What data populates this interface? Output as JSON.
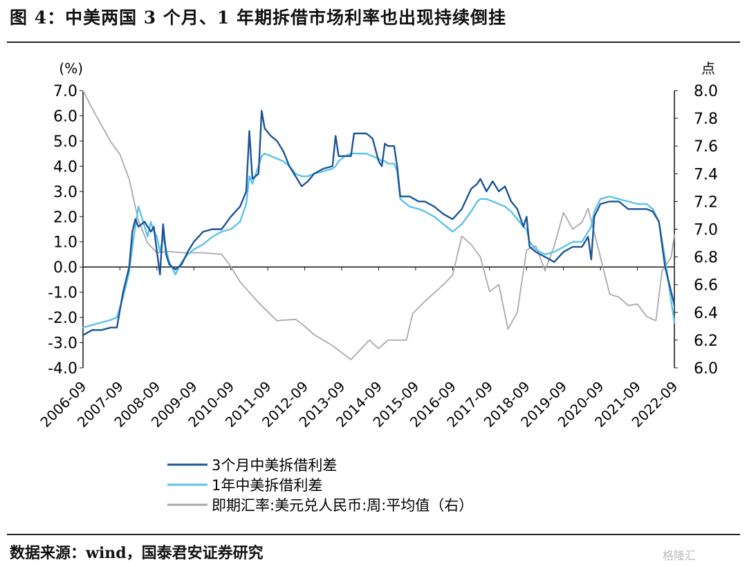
{
  "figure": {
    "title": "图 4：中美两国 3 个月、1 年期拆借市场利率也出现持续倒挂",
    "source": "数据来源：wind，国泰君安证券研究",
    "watermark": "格隆汇"
  },
  "colors": {
    "series_3m": "#1a5396",
    "series_1y": "#5bc2ea",
    "series_fx": "#a9a9a9",
    "axis": "#111111"
  },
  "chart_data": {
    "type": "line",
    "left_axis": {
      "unit_label": "(%)",
      "ylim": [
        -4.0,
        7.0
      ],
      "ticks": [
        "-4.0",
        "-3.0",
        "-2.0",
        "-1.0",
        "0.0",
        "1.0",
        "2.0",
        "3.0",
        "4.0",
        "5.0",
        "6.0",
        "7.0"
      ]
    },
    "right_axis": {
      "unit_label": "点",
      "ylim": [
        6.0,
        8.0
      ],
      "ticks": [
        "6.0",
        "6.2",
        "6.4",
        "6.6",
        "6.8",
        "7.0",
        "7.2",
        "7.4",
        "7.6",
        "7.8",
        "8.0"
      ]
    },
    "x_axis": {
      "range": [
        "2006-09",
        "2022-09"
      ],
      "ticks": [
        "2006-09",
        "2007-09",
        "2008-09",
        "2009-09",
        "2010-09",
        "2011-09",
        "2012-09",
        "2013-09",
        "2014-09",
        "2015-09",
        "2016-09",
        "2017-09",
        "2018-09",
        "2019-09",
        "2020-09",
        "2021-09",
        "2022-09"
      ]
    },
    "grid": false,
    "legend_position": "bottom",
    "series": [
      {
        "name": "3个月中美拆借利差",
        "axis": "left",
        "points": [
          [
            "2006-09",
            -2.7
          ],
          [
            "2006-12",
            -2.5
          ],
          [
            "2007-03",
            -2.5
          ],
          [
            "2007-06",
            -2.4
          ],
          [
            "2007-08",
            -2.4
          ],
          [
            "2007-10",
            -1.0
          ],
          [
            "2007-12",
            0.0
          ],
          [
            "2008-01",
            1.4
          ],
          [
            "2008-02",
            1.9
          ],
          [
            "2008-03",
            1.6
          ],
          [
            "2008-05",
            1.8
          ],
          [
            "2008-06",
            1.6
          ],
          [
            "2008-07",
            1.4
          ],
          [
            "2008-08",
            1.6
          ],
          [
            "2008-09",
            0.6
          ],
          [
            "2008-10",
            -0.3
          ],
          [
            "2008-11",
            1.7
          ],
          [
            "2008-12",
            0.5
          ],
          [
            "2009-01",
            0.1
          ],
          [
            "2009-03",
            -0.1
          ],
          [
            "2009-05",
            0.1
          ],
          [
            "2009-07",
            0.6
          ],
          [
            "2009-09",
            1.0
          ],
          [
            "2009-12",
            1.4
          ],
          [
            "2010-03",
            1.5
          ],
          [
            "2010-06",
            1.5
          ],
          [
            "2010-09",
            2.0
          ],
          [
            "2010-12",
            2.4
          ],
          [
            "2011-02",
            3.0
          ],
          [
            "2011-03",
            5.4
          ],
          [
            "2011-04",
            3.5
          ],
          [
            "2011-06",
            3.7
          ],
          [
            "2011-07",
            6.2
          ],
          [
            "2011-08",
            5.5
          ],
          [
            "2011-10",
            5.2
          ],
          [
            "2011-12",
            5.0
          ],
          [
            "2012-02",
            4.6
          ],
          [
            "2012-04",
            4.0
          ],
          [
            "2012-06",
            3.6
          ],
          [
            "2012-08",
            3.2
          ],
          [
            "2012-10",
            3.4
          ],
          [
            "2012-12",
            3.7
          ],
          [
            "2013-03",
            3.9
          ],
          [
            "2013-06",
            4.0
          ],
          [
            "2013-07",
            5.2
          ],
          [
            "2013-08",
            4.4
          ],
          [
            "2013-10",
            4.4
          ],
          [
            "2013-12",
            4.4
          ],
          [
            "2014-01",
            5.3
          ],
          [
            "2014-03",
            5.3
          ],
          [
            "2014-05",
            5.3
          ],
          [
            "2014-07",
            5.1
          ],
          [
            "2014-09",
            4.2
          ],
          [
            "2014-10",
            4.0
          ],
          [
            "2014-11",
            4.9
          ],
          [
            "2014-12",
            4.8
          ],
          [
            "2015-02",
            4.8
          ],
          [
            "2015-03",
            4.0
          ],
          [
            "2015-04",
            2.8
          ],
          [
            "2015-07",
            2.8
          ],
          [
            "2015-10",
            2.6
          ],
          [
            "2015-12",
            2.6
          ],
          [
            "2016-03",
            2.4
          ],
          [
            "2016-06",
            2.1
          ],
          [
            "2016-09",
            1.9
          ],
          [
            "2016-12",
            2.3
          ],
          [
            "2017-03",
            3.1
          ],
          [
            "2017-05",
            3.3
          ],
          [
            "2017-06",
            3.5
          ],
          [
            "2017-08",
            3.0
          ],
          [
            "2017-10",
            3.4
          ],
          [
            "2017-12",
            3.0
          ],
          [
            "2018-02",
            3.2
          ],
          [
            "2018-04",
            2.6
          ],
          [
            "2018-06",
            2.3
          ],
          [
            "2018-08",
            1.6
          ],
          [
            "2018-09",
            2.0
          ],
          [
            "2018-10",
            0.8
          ],
          [
            "2018-12",
            0.6
          ],
          [
            "2019-03",
            0.4
          ],
          [
            "2019-06",
            0.2
          ],
          [
            "2019-09",
            0.6
          ],
          [
            "2019-12",
            0.8
          ],
          [
            "2020-03",
            0.8
          ],
          [
            "2020-05",
            1.2
          ],
          [
            "2020-06",
            0.3
          ],
          [
            "2020-07",
            2.0
          ],
          [
            "2020-09",
            2.5
          ],
          [
            "2020-12",
            2.6
          ],
          [
            "2021-03",
            2.6
          ],
          [
            "2021-06",
            2.3
          ],
          [
            "2021-09",
            2.3
          ],
          [
            "2021-12",
            2.3
          ],
          [
            "2022-02",
            2.2
          ],
          [
            "2022-04",
            1.8
          ],
          [
            "2022-06",
            0.0
          ],
          [
            "2022-09",
            -1.5
          ]
        ]
      },
      {
        "name": "1年中美拆借利差",
        "axis": "left",
        "points": [
          [
            "2006-09",
            -2.4
          ],
          [
            "2006-12",
            -2.3
          ],
          [
            "2007-03",
            -2.2
          ],
          [
            "2007-06",
            -2.1
          ],
          [
            "2007-08",
            -2.0
          ],
          [
            "2007-10",
            -1.2
          ],
          [
            "2007-12",
            -0.2
          ],
          [
            "2008-01",
            0.8
          ],
          [
            "2008-02",
            1.6
          ],
          [
            "2008-03",
            2.4
          ],
          [
            "2008-05",
            1.6
          ],
          [
            "2008-06",
            1.2
          ],
          [
            "2008-07",
            1.8
          ],
          [
            "2008-08",
            1.4
          ],
          [
            "2008-09",
            1.2
          ],
          [
            "2008-10",
            0.6
          ],
          [
            "2008-11",
            1.2
          ],
          [
            "2008-12",
            0.7
          ],
          [
            "2009-01",
            0.2
          ],
          [
            "2009-03",
            -0.3
          ],
          [
            "2009-05",
            0.2
          ],
          [
            "2009-07",
            0.5
          ],
          [
            "2009-09",
            0.7
          ],
          [
            "2009-12",
            0.9
          ],
          [
            "2010-03",
            1.2
          ],
          [
            "2010-06",
            1.4
          ],
          [
            "2010-09",
            1.5
          ],
          [
            "2010-12",
            1.8
          ],
          [
            "2011-02",
            2.5
          ],
          [
            "2011-03",
            3.6
          ],
          [
            "2011-04",
            3.3
          ],
          [
            "2011-06",
            4.0
          ],
          [
            "2011-07",
            4.4
          ],
          [
            "2011-08",
            4.5
          ],
          [
            "2011-10",
            4.4
          ],
          [
            "2011-12",
            4.3
          ],
          [
            "2012-02",
            4.2
          ],
          [
            "2012-04",
            4.0
          ],
          [
            "2012-06",
            3.7
          ],
          [
            "2012-08",
            3.6
          ],
          [
            "2012-10",
            3.6
          ],
          [
            "2012-12",
            3.7
          ],
          [
            "2013-03",
            3.8
          ],
          [
            "2013-06",
            3.9
          ],
          [
            "2013-07",
            4.0
          ],
          [
            "2013-08",
            4.2
          ],
          [
            "2013-10",
            4.4
          ],
          [
            "2013-12",
            4.5
          ],
          [
            "2014-01",
            4.5
          ],
          [
            "2014-03",
            4.5
          ],
          [
            "2014-05",
            4.5
          ],
          [
            "2014-07",
            4.4
          ],
          [
            "2014-09",
            4.3
          ],
          [
            "2014-10",
            4.2
          ],
          [
            "2014-11",
            4.2
          ],
          [
            "2014-12",
            4.1
          ],
          [
            "2015-02",
            4.1
          ],
          [
            "2015-03",
            3.8
          ],
          [
            "2015-04",
            2.7
          ],
          [
            "2015-07",
            2.4
          ],
          [
            "2015-10",
            2.3
          ],
          [
            "2015-12",
            2.2
          ],
          [
            "2016-03",
            2.0
          ],
          [
            "2016-06",
            1.7
          ],
          [
            "2016-09",
            1.4
          ],
          [
            "2016-12",
            1.7
          ],
          [
            "2017-03",
            2.2
          ],
          [
            "2017-05",
            2.6
          ],
          [
            "2017-06",
            2.7
          ],
          [
            "2017-08",
            2.7
          ],
          [
            "2017-10",
            2.6
          ],
          [
            "2017-12",
            2.5
          ],
          [
            "2018-02",
            2.4
          ],
          [
            "2018-04",
            2.2
          ],
          [
            "2018-06",
            1.9
          ],
          [
            "2018-08",
            1.6
          ],
          [
            "2018-09",
            1.5
          ],
          [
            "2018-10",
            1.0
          ],
          [
            "2018-12",
            0.7
          ],
          [
            "2019-03",
            0.5
          ],
          [
            "2019-06",
            0.6
          ],
          [
            "2019-09",
            0.8
          ],
          [
            "2019-12",
            1.0
          ],
          [
            "2020-03",
            1.0
          ],
          [
            "2020-05",
            1.4
          ],
          [
            "2020-06",
            1.6
          ],
          [
            "2020-07",
            2.2
          ],
          [
            "2020-09",
            2.7
          ],
          [
            "2020-12",
            2.8
          ],
          [
            "2021-03",
            2.7
          ],
          [
            "2021-06",
            2.6
          ],
          [
            "2021-09",
            2.5
          ],
          [
            "2021-12",
            2.5
          ],
          [
            "2022-02",
            2.3
          ],
          [
            "2022-04",
            1.8
          ],
          [
            "2022-06",
            0.3
          ],
          [
            "2022-09",
            -2.2
          ]
        ]
      },
      {
        "name": "即期汇率:美元兑人民币:周:平均值（右）",
        "axis": "right",
        "points": [
          [
            "2006-09",
            8.0
          ],
          [
            "2006-12",
            7.87
          ],
          [
            "2007-03",
            7.75
          ],
          [
            "2007-06",
            7.63
          ],
          [
            "2007-09",
            7.54
          ],
          [
            "2007-12",
            7.36
          ],
          [
            "2008-03",
            7.06
          ],
          [
            "2008-06",
            6.9
          ],
          [
            "2008-09",
            6.83
          ],
          [
            "2008-12",
            6.84
          ],
          [
            "2009-06",
            6.83
          ],
          [
            "2009-12",
            6.83
          ],
          [
            "2010-06",
            6.82
          ],
          [
            "2010-09",
            6.73
          ],
          [
            "2010-12",
            6.62
          ],
          [
            "2011-06",
            6.47
          ],
          [
            "2011-12",
            6.34
          ],
          [
            "2012-06",
            6.35
          ],
          [
            "2012-09",
            6.3
          ],
          [
            "2012-12",
            6.24
          ],
          [
            "2013-06",
            6.16
          ],
          [
            "2013-12",
            6.06
          ],
          [
            "2014-03",
            6.13
          ],
          [
            "2014-06",
            6.2
          ],
          [
            "2014-09",
            6.14
          ],
          [
            "2014-12",
            6.2
          ],
          [
            "2015-06",
            6.2
          ],
          [
            "2015-08",
            6.39
          ],
          [
            "2015-12",
            6.48
          ],
          [
            "2016-06",
            6.6
          ],
          [
            "2016-09",
            6.67
          ],
          [
            "2016-12",
            6.95
          ],
          [
            "2017-03",
            6.89
          ],
          [
            "2017-06",
            6.8
          ],
          [
            "2017-09",
            6.55
          ],
          [
            "2017-12",
            6.6
          ],
          [
            "2018-03",
            6.28
          ],
          [
            "2018-06",
            6.4
          ],
          [
            "2018-09",
            6.85
          ],
          [
            "2018-12",
            6.88
          ],
          [
            "2019-03",
            6.7
          ],
          [
            "2019-06",
            6.88
          ],
          [
            "2019-09",
            7.12
          ],
          [
            "2019-12",
            7.0
          ],
          [
            "2020-03",
            7.05
          ],
          [
            "2020-05",
            7.15
          ],
          [
            "2020-09",
            6.8
          ],
          [
            "2020-12",
            6.53
          ],
          [
            "2021-03",
            6.51
          ],
          [
            "2021-06",
            6.45
          ],
          [
            "2021-09",
            6.46
          ],
          [
            "2021-12",
            6.37
          ],
          [
            "2022-03",
            6.34
          ],
          [
            "2022-05",
            6.7
          ],
          [
            "2022-08",
            6.8
          ],
          [
            "2022-09",
            6.96
          ]
        ]
      }
    ]
  }
}
